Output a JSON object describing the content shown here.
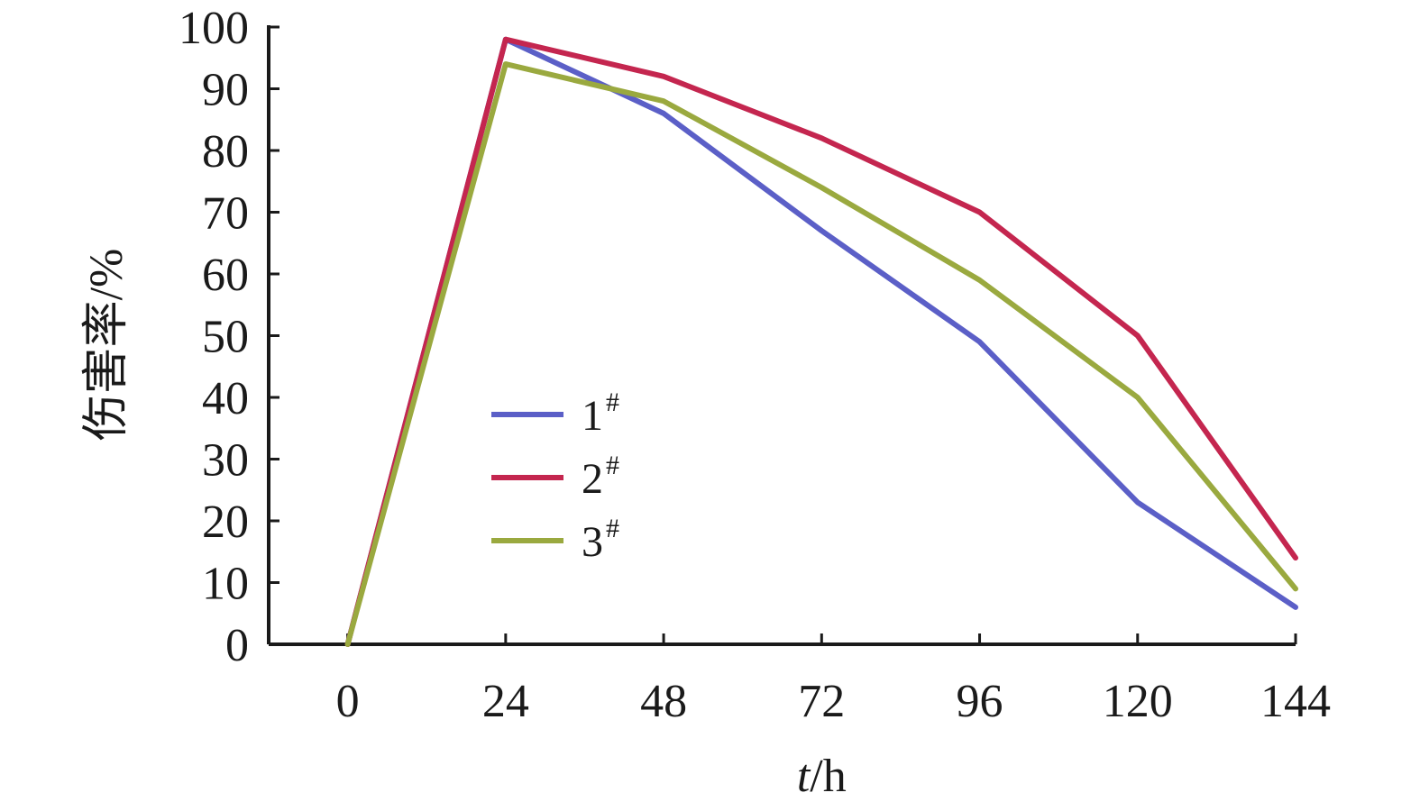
{
  "chart_data": {
    "type": "line",
    "title": "",
    "xlabel_italic": "t",
    "xlabel_rest": "/h",
    "ylabel": "伤害率/%",
    "x": [
      0,
      24,
      48,
      72,
      96,
      120,
      144
    ],
    "xlim": [
      -12,
      144
    ],
    "ylim": [
      0,
      100
    ],
    "yticks": [
      0,
      10,
      20,
      30,
      40,
      50,
      60,
      70,
      80,
      90,
      100
    ],
    "grid": false,
    "legend_position": "center-left",
    "series": [
      {
        "name": "1",
        "sup": "#",
        "color": "#5b5fc7",
        "values": [
          0,
          98,
          86,
          67,
          49,
          23,
          6
        ]
      },
      {
        "name": "2",
        "sup": "#",
        "color": "#c4264f",
        "values": [
          0,
          98,
          92,
          82,
          70,
          50,
          14
        ]
      },
      {
        "name": "3",
        "sup": "#",
        "color": "#9aa93f",
        "values": [
          0,
          94,
          88,
          74,
          59,
          40,
          9
        ]
      }
    ]
  }
}
